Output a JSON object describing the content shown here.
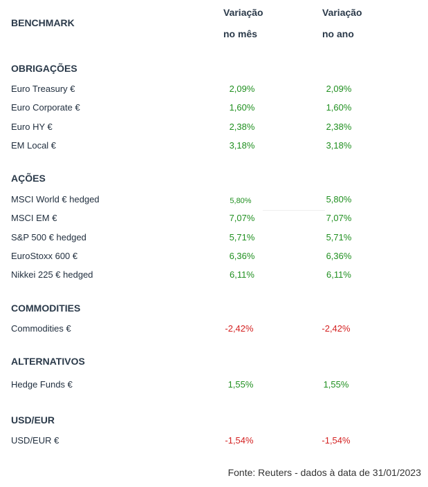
{
  "header": {
    "benchmark": "BENCHMARK",
    "col_month_line1": "Variação",
    "col_month_line2": "no mês",
    "col_year_line1": "Variação",
    "col_year_line2": "no ano"
  },
  "sections": [
    {
      "title": "OBRIGAÇÕES",
      "rows": [
        {
          "name": "Euro Treasury €",
          "month": "2,09%",
          "year": "2,09%"
        },
        {
          "name": "Euro Corporate €",
          "month": "1,60%",
          "year": "1,60%"
        },
        {
          "name": "Euro HY €",
          "month": "2,38%",
          "year": "2,38%"
        },
        {
          "name": "EM Local €",
          "month": "3,18%",
          "year": "3,18%"
        }
      ]
    },
    {
      "title": "AÇÕES",
      "rows": [
        {
          "name": "MSCI World € hedged",
          "month": "5,80%",
          "year": "5,80%"
        },
        {
          "name": "MSCI EM €",
          "month": "7,07%",
          "year": "7,07%"
        },
        {
          "name": "S&P 500 € hedged",
          "month": "5,71%",
          "year": "5,71%"
        },
        {
          "name": "EuroStoxx 600 €",
          "month": "6,36%",
          "year": "6,36%"
        },
        {
          "name": "Nikkei 225 € hedged",
          "month": "6,11%",
          "year": "6,11%"
        }
      ]
    },
    {
      "title": "COMMODITIES",
      "rows": [
        {
          "name": "Commodities €",
          "month": "-2,42%",
          "year": "-2,42%"
        }
      ]
    },
    {
      "title": "ALTERNATIVOS",
      "rows": [
        {
          "name": "Hedge Funds €",
          "month": "1,55%",
          "year": "1,55%"
        }
      ]
    },
    {
      "title": "USD/EUR",
      "rows": [
        {
          "name": "USD/EUR €",
          "month": "-1,54%",
          "year": "-1,54%"
        }
      ]
    }
  ],
  "colors": {
    "positive": "#1f8f1f",
    "negative": "#d42020"
  },
  "footer": {
    "source": "Fonte: Reuters - dados à data de 31/01/2023"
  }
}
